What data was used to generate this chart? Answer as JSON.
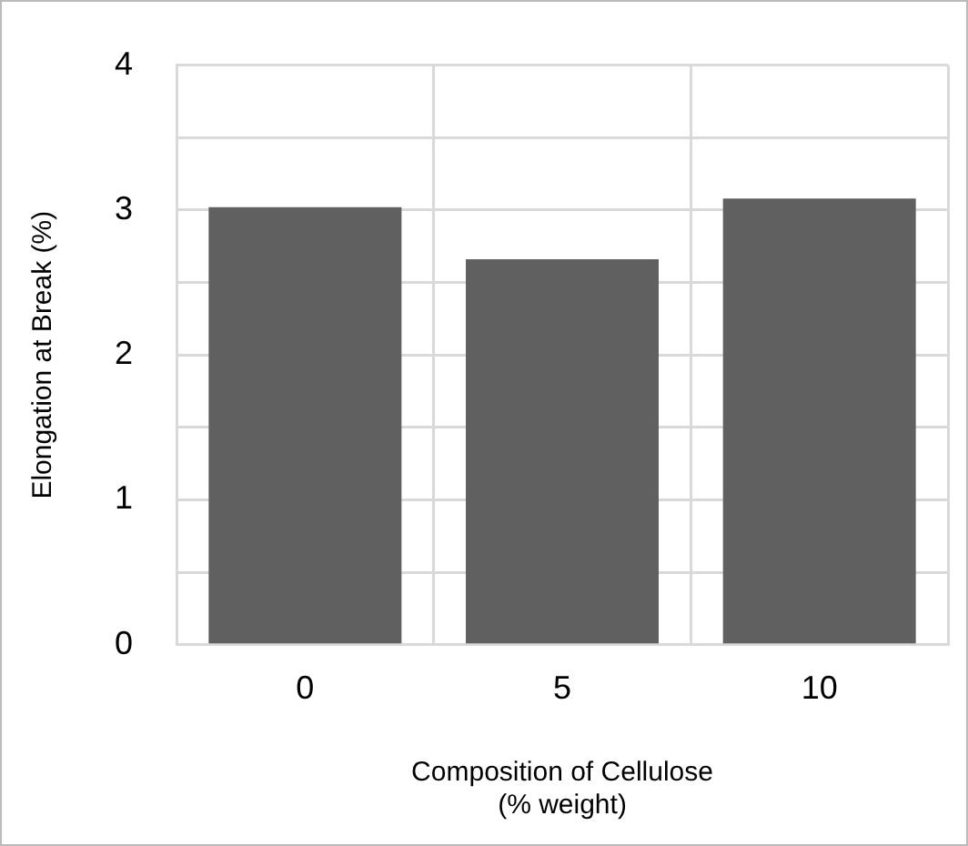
{
  "chart_data": {
    "type": "bar",
    "xlabel": "Composition of Cellulose\n(% weight)",
    "ylabel": "Elongation at Break (%)",
    "categories": [
      "0",
      "5",
      "10"
    ],
    "values": [
      3.02,
      2.66,
      3.08
    ],
    "color": "#606060",
    "ylim": [
      0,
      4
    ],
    "yticks": [
      0,
      {
        "value": 0.5,
        "label": null
      },
      1,
      {
        "value": 1.5,
        "label": null
      },
      2,
      {
        "value": 2.5,
        "label": null
      },
      3,
      {
        "value": 3.5,
        "label": null
      },
      4
    ],
    "grid": true
  }
}
